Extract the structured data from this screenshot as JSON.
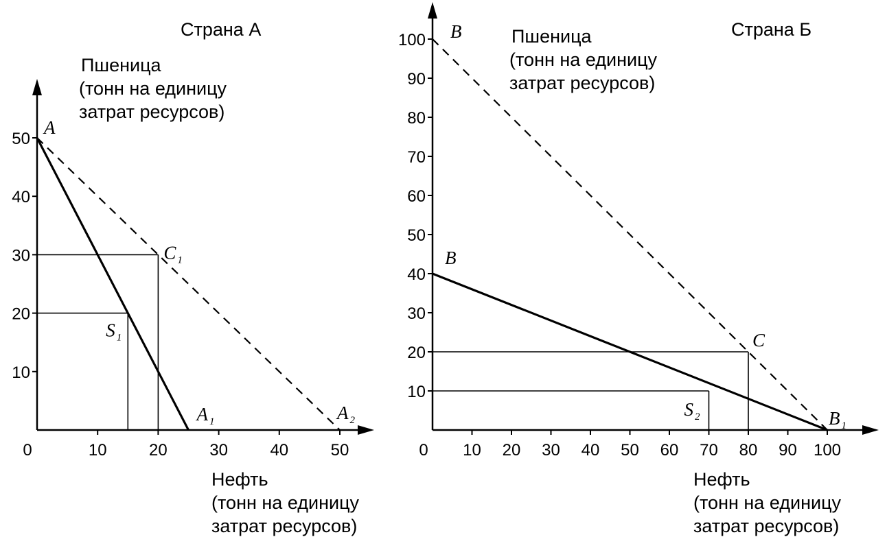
{
  "chart_data": [
    {
      "type": "line",
      "title": "Страна А",
      "ylabel_lines": [
        "Пшеница",
        "(тонн на единицу",
        "затрат ресурсов)"
      ],
      "xlabel_lines": [
        "Нефть",
        "(тонн на единицу",
        "затрат ресурсов)"
      ],
      "origin_label": "0",
      "xlim": [
        0,
        50
      ],
      "ylim": [
        0,
        50
      ],
      "x_ticks": [
        10,
        20,
        30,
        40,
        50
      ],
      "y_ticks": [
        10,
        20,
        30,
        40,
        50
      ],
      "series": [
        {
          "style": "solid",
          "points": [
            [
              0,
              50
            ],
            [
              25,
              0
            ]
          ]
        },
        {
          "style": "dashed",
          "points": [
            [
              0,
              50
            ],
            [
              50,
              0
            ]
          ]
        }
      ],
      "guides": [
        {
          "x": 20,
          "y": 30
        },
        {
          "x": 15,
          "y": 20
        }
      ],
      "point_labels": [
        {
          "text": "A",
          "sub": "",
          "x": 0,
          "y": 50
        },
        {
          "text": "C",
          "sub": "1",
          "x": 20,
          "y": 30
        },
        {
          "text": "S",
          "sub": "1",
          "x": 15,
          "y": 20
        },
        {
          "text": "A",
          "sub": "1",
          "x": 25,
          "y": 0
        },
        {
          "text": "A",
          "sub": "2",
          "x": 50,
          "y": 0
        }
      ]
    },
    {
      "type": "line",
      "title": "Страна Б",
      "ylabel_lines": [
        "Пшеница",
        "(тонн на единицу",
        "затрат ресурсов)"
      ],
      "xlabel_lines": [
        "Нефть",
        "(тонн на единицу",
        "затрат ресурсов)"
      ],
      "origin_label": "0",
      "xlim": [
        0,
        100
      ],
      "ylim": [
        0,
        100
      ],
      "x_ticks": [
        10,
        20,
        30,
        40,
        50,
        60,
        70,
        80,
        90,
        100
      ],
      "y_ticks": [
        10,
        20,
        30,
        40,
        50,
        60,
        70,
        80,
        90,
        100
      ],
      "series": [
        {
          "style": "solid",
          "points": [
            [
              0,
              40
            ],
            [
              100,
              0
            ]
          ]
        },
        {
          "style": "dashed",
          "points": [
            [
              0,
              100
            ],
            [
              100,
              0
            ]
          ]
        }
      ],
      "guides": [
        {
          "x": 80,
          "y": 20
        },
        {
          "x": 70,
          "y": 10
        }
      ],
      "point_labels": [
        {
          "text": "B",
          "sub": "",
          "x": 0,
          "y": 100
        },
        {
          "text": "B",
          "sub": "",
          "x": 0,
          "y": 40
        },
        {
          "text": "C",
          "sub": "",
          "x": 80,
          "y": 20
        },
        {
          "text": "S",
          "sub": "2",
          "x": 70,
          "y": 10
        },
        {
          "text": "B",
          "sub": "1",
          "x": 100,
          "y": 0
        }
      ]
    }
  ]
}
